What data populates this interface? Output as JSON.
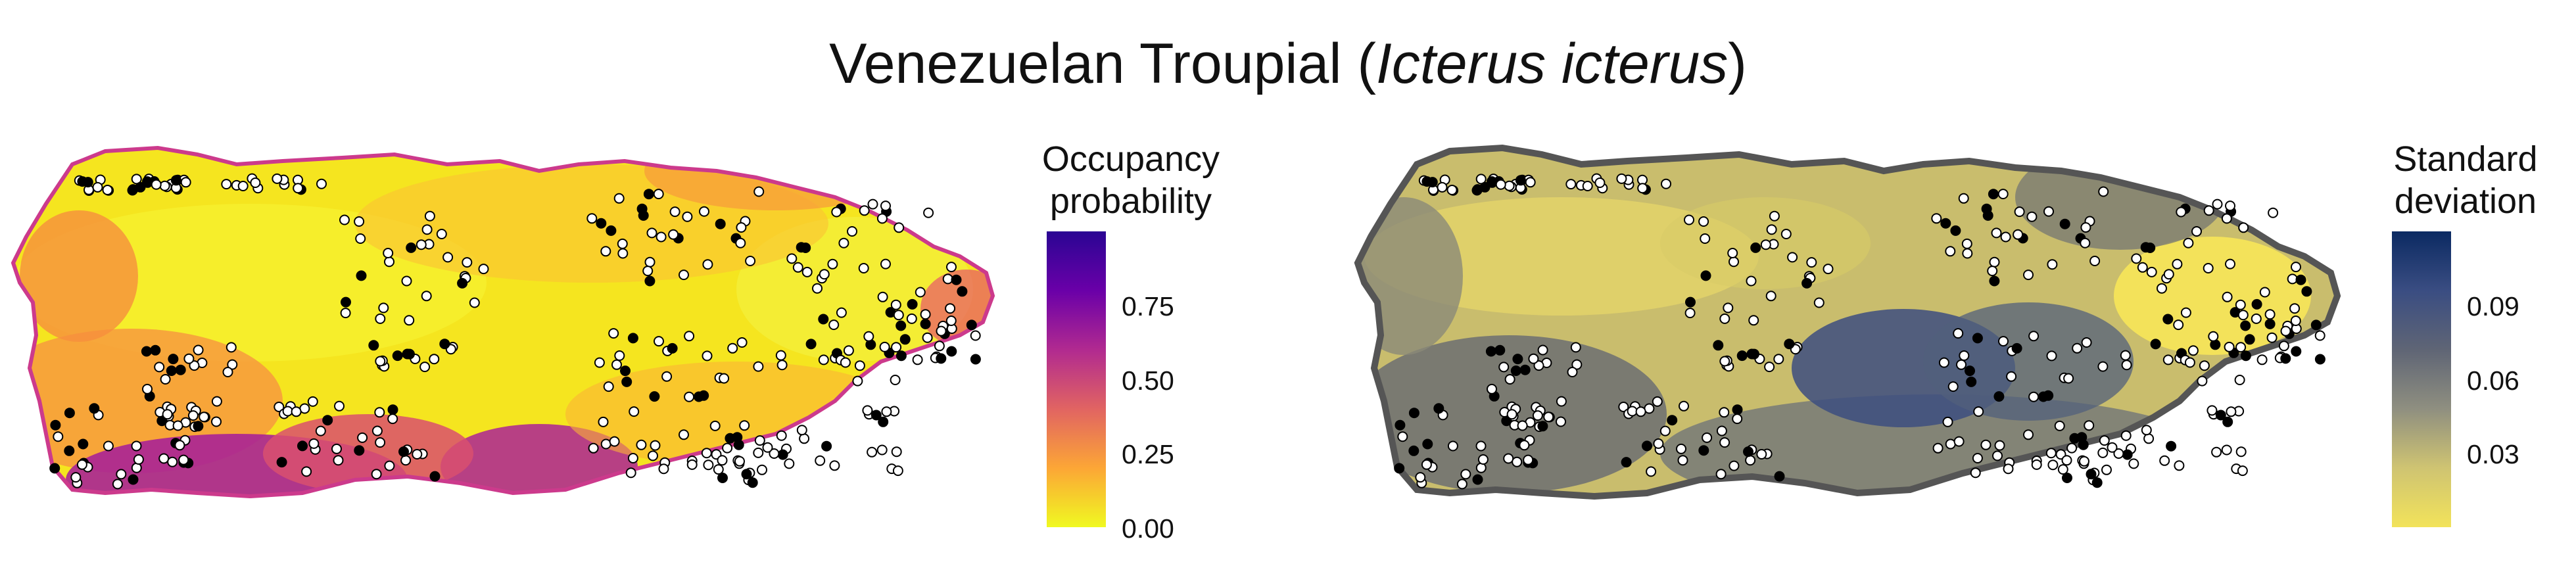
{
  "title": {
    "main": "Venezuelan Troupial (",
    "species": "Icterus icterus",
    "close": ")"
  },
  "maps": [
    {
      "name": "occupancy",
      "legend": {
        "line1": "Occupancy",
        "line2": "probability",
        "ticks": [
          "0.75",
          "0.50",
          "0.25",
          "0.00"
        ],
        "tick_values": [
          0.75,
          0.5,
          0.25,
          0.0
        ],
        "range": [
          0.0,
          0.95
        ],
        "colors": [
          "#f0f921",
          "#fca636",
          "#e16462",
          "#b12a90",
          "#6a00a8",
          "#2a0593"
        ]
      }
    },
    {
      "name": "standard-deviation",
      "legend": {
        "line1": "Standard",
        "line2": "deviation",
        "ticks": [
          "0.09",
          "0.06",
          "0.03"
        ],
        "tick_values": [
          0.09,
          0.06,
          0.03
        ],
        "range": [
          0.0,
          0.11
        ],
        "colors": [
          "#f2e35a",
          "#cfc472",
          "#8f8f80",
          "#5f6575",
          "#3a4d82",
          "#0b2a62"
        ]
      }
    }
  ],
  "detection_markers": {
    "detected": "#000000",
    "not_detected": "#ffffff"
  }
}
